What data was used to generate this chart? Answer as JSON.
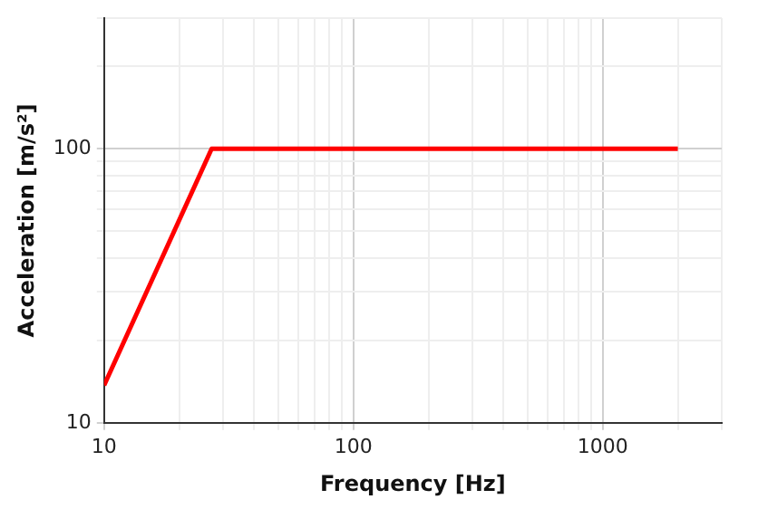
{
  "chart_data": {
    "type": "line",
    "xlabel": "Frequency [Hz]",
    "ylabel": "Acceleration [m/s²]",
    "log": "xy",
    "grid": true,
    "marker": "none",
    "line_style": "solid",
    "xlim": [
      10,
      3000
    ],
    "ylim": [
      10,
      300
    ],
    "xticks": [
      10,
      {
        "value": 20,
        "label": null
      },
      {
        "value": 30,
        "label": null
      },
      {
        "value": 40,
        "label": null
      },
      {
        "value": 50,
        "label": null
      },
      {
        "value": 60,
        "label": null
      },
      {
        "value": 70,
        "label": null
      },
      {
        "value": 80,
        "label": null
      },
      {
        "value": 90,
        "label": null
      },
      100,
      {
        "value": 200,
        "label": null
      },
      {
        "value": 300,
        "label": null
      },
      {
        "value": 400,
        "label": null
      },
      {
        "value": 500,
        "label": null
      },
      {
        "value": 600,
        "label": null
      },
      {
        "value": 700,
        "label": null
      },
      {
        "value": 800,
        "label": null
      },
      {
        "value": 900,
        "label": null
      },
      1000,
      {
        "value": 2000,
        "label": null
      },
      {
        "value": 3000,
        "label": null
      }
    ],
    "yticks": [
      10,
      {
        "value": 20,
        "label": null
      },
      {
        "value": 30,
        "label": null
      },
      {
        "value": 40,
        "label": null
      },
      {
        "value": 50,
        "label": null
      },
      {
        "value": 60,
        "label": null
      },
      {
        "value": 70,
        "label": null
      },
      {
        "value": 80,
        "label": null
      },
      {
        "value": 90,
        "label": null
      },
      100,
      {
        "value": 200,
        "label": null
      },
      {
        "value": 300,
        "label": null
      }
    ],
    "series": [
      {
        "color": "#ff0000",
        "x": [
          10,
          27,
          2000
        ],
        "values": [
          13.7,
          100,
          100
        ]
      }
    ]
  }
}
